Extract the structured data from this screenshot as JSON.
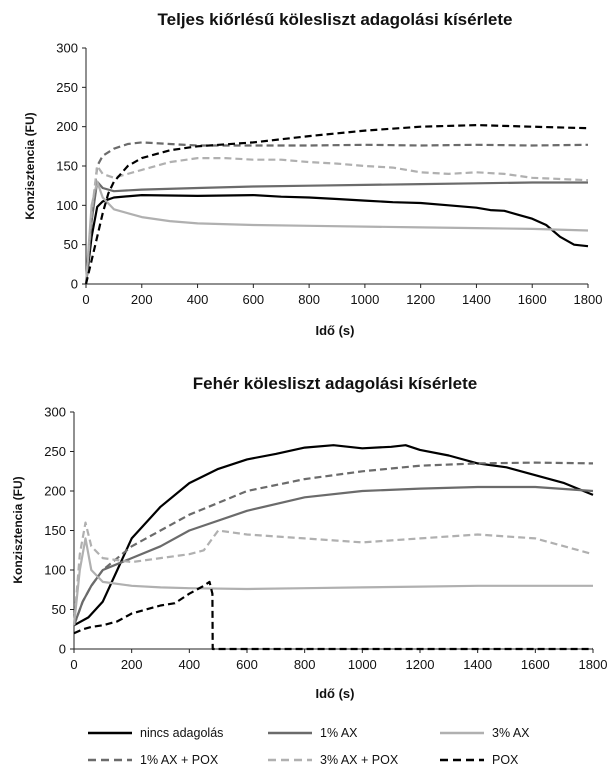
{
  "chart_data": [
    {
      "type": "line",
      "title": "Teljes kiőrlésű kölesliszt adagolási kísérlete",
      "xlabel": "Idő (s)",
      "ylabel": "Konzisztencia (FU)",
      "xlim": [
        0,
        1800
      ],
      "ylim": [
        0,
        300
      ],
      "xticks": [
        0,
        200,
        400,
        600,
        800,
        1000,
        1200,
        1400,
        1600,
        1800
      ],
      "yticks": [
        0,
        50,
        100,
        150,
        200,
        250,
        300
      ],
      "grid": false,
      "series": [
        {
          "name": "nincs adagolás",
          "color": "#000000",
          "dash": "solid",
          "width": 2.2,
          "x": [
            0,
            20,
            40,
            60,
            100,
            200,
            400,
            600,
            700,
            800,
            900,
            1000,
            1100,
            1200,
            1300,
            1400,
            1450,
            1500,
            1550,
            1600,
            1650,
            1700,
            1750,
            1800
          ],
          "y": [
            0,
            60,
            98,
            105,
            110,
            113,
            112,
            113,
            111,
            110,
            108,
            106,
            104,
            103,
            100,
            97,
            94,
            93,
            88,
            83,
            75,
            60,
            50,
            48
          ]
        },
        {
          "name": "1% AX",
          "color": "#6b6b6b",
          "dash": "solid",
          "width": 2.2,
          "x": [
            0,
            20,
            40,
            60,
            100,
            200,
            400,
            600,
            800,
            1000,
            1200,
            1400,
            1600,
            1800
          ],
          "y": [
            0,
            80,
            130,
            122,
            118,
            120,
            122,
            124,
            125,
            126,
            127,
            128,
            129,
            129
          ]
        },
        {
          "name": "3% AX",
          "color": "#b0b0b0",
          "dash": "solid",
          "width": 2.2,
          "x": [
            0,
            20,
            40,
            60,
            100,
            200,
            300,
            400,
            600,
            800,
            1000,
            1200,
            1400,
            1600,
            1800
          ],
          "y": [
            0,
            100,
            130,
            110,
            95,
            85,
            80,
            77,
            75,
            74,
            73,
            72,
            71,
            70,
            68
          ]
        },
        {
          "name": "1% AX + POX",
          "color": "#6b6b6b",
          "dash": "dash",
          "width": 2.2,
          "x": [
            0,
            20,
            40,
            60,
            100,
            150,
            200,
            300,
            400,
            600,
            800,
            1000,
            1200,
            1400,
            1600,
            1800
          ],
          "y": [
            0,
            80,
            150,
            163,
            172,
            178,
            180,
            178,
            176,
            176,
            176,
            177,
            176,
            177,
            176,
            177
          ]
        },
        {
          "name": "3% AX + POX",
          "color": "#b0b0b0",
          "dash": "dash",
          "width": 2.2,
          "x": [
            0,
            20,
            40,
            60,
            100,
            200,
            300,
            400,
            500,
            600,
            700,
            800,
            900,
            1000,
            1100,
            1200,
            1300,
            1400,
            1500,
            1600,
            1800
          ],
          "y": [
            0,
            90,
            150,
            140,
            135,
            145,
            155,
            160,
            160,
            158,
            158,
            155,
            153,
            150,
            148,
            142,
            140,
            142,
            140,
            135,
            132
          ]
        },
        {
          "name": "POX",
          "color": "#000000",
          "dash": "dash",
          "width": 2.2,
          "x": [
            0,
            20,
            40,
            60,
            80,
            100,
            150,
            200,
            300,
            400,
            600,
            800,
            1000,
            1200,
            1400,
            1600,
            1800
          ],
          "y": [
            0,
            30,
            60,
            90,
            115,
            130,
            150,
            160,
            170,
            175,
            180,
            188,
            195,
            200,
            202,
            200,
            198
          ]
        }
      ]
    },
    {
      "type": "line",
      "title": "Fehér kölesliszt adagolási kísérlete",
      "xlabel": "Idő (s)",
      "ylabel": "Konzisztencia (FU)",
      "xlim": [
        0,
        1800
      ],
      "ylim": [
        0,
        300
      ],
      "xticks": [
        0,
        200,
        400,
        600,
        800,
        1000,
        1200,
        1400,
        1600,
        1800
      ],
      "yticks": [
        0,
        50,
        100,
        150,
        200,
        250,
        300
      ],
      "grid": false,
      "series": [
        {
          "name": "nincs adagolás",
          "color": "#000000",
          "dash": "solid",
          "width": 2.2,
          "x": [
            0,
            50,
            100,
            150,
            200,
            300,
            400,
            500,
            600,
            700,
            800,
            900,
            1000,
            1100,
            1150,
            1200,
            1300,
            1400,
            1500,
            1600,
            1700,
            1800
          ],
          "y": [
            30,
            40,
            60,
            100,
            140,
            180,
            210,
            228,
            240,
            247,
            255,
            258,
            254,
            256,
            258,
            252,
            245,
            235,
            230,
            220,
            210,
            195
          ]
        },
        {
          "name": "1% AX",
          "color": "#6b6b6b",
          "dash": "solid",
          "width": 2.2,
          "x": [
            0,
            30,
            60,
            100,
            200,
            300,
            400,
            600,
            800,
            1000,
            1200,
            1400,
            1600,
            1800
          ],
          "y": [
            30,
            60,
            80,
            100,
            115,
            130,
            150,
            175,
            192,
            200,
            203,
            205,
            205,
            200
          ]
        },
        {
          "name": "3% AX",
          "color": "#b0b0b0",
          "dash": "solid",
          "width": 2.2,
          "x": [
            0,
            20,
            40,
            60,
            100,
            200,
            300,
            400,
            600,
            800,
            1000,
            1200,
            1400,
            1600,
            1800
          ],
          "y": [
            30,
            100,
            140,
            100,
            85,
            80,
            78,
            77,
            76,
            77,
            78,
            79,
            80,
            80,
            80
          ]
        },
        {
          "name": "1% AX + POX",
          "color": "#6b6b6b",
          "dash": "dash",
          "width": 2.2,
          "x": [
            0,
            30,
            60,
            100,
            200,
            300,
            400,
            500,
            600,
            800,
            1000,
            1200,
            1400,
            1600,
            1800
          ],
          "y": [
            30,
            60,
            80,
            100,
            130,
            150,
            170,
            185,
            200,
            215,
            225,
            232,
            235,
            236,
            235
          ]
        },
        {
          "name": "3% AX + POX",
          "color": "#b0b0b0",
          "dash": "dash",
          "width": 2.2,
          "x": [
            0,
            20,
            40,
            60,
            100,
            200,
            300,
            400,
            450,
            500,
            600,
            800,
            1000,
            1200,
            1400,
            1600,
            1800
          ],
          "y": [
            30,
            120,
            160,
            130,
            115,
            110,
            115,
            120,
            125,
            150,
            145,
            140,
            135,
            140,
            145,
            140,
            120
          ]
        },
        {
          "name": "POX",
          "color": "#000000",
          "dash": "dash",
          "width": 2.2,
          "x": [
            0,
            30,
            60,
            100,
            150,
            200,
            250,
            300,
            350,
            400,
            450,
            470,
            480,
            481,
            600,
            800,
            1000,
            1200,
            1400,
            1600,
            1800
          ],
          "y": [
            20,
            25,
            28,
            30,
            35,
            45,
            50,
            55,
            58,
            70,
            80,
            85,
            70,
            0,
            0,
            0,
            0,
            0,
            0,
            0,
            0
          ]
        }
      ]
    }
  ],
  "legend": {
    "placement": "bottom",
    "items": [
      {
        "label": "nincs adagolás",
        "color": "#000000",
        "dash": "solid"
      },
      {
        "label": "1% AX",
        "color": "#6b6b6b",
        "dash": "solid"
      },
      {
        "label": "3% AX",
        "color": "#b0b0b0",
        "dash": "solid"
      },
      {
        "label": "1% AX + POX",
        "color": "#6b6b6b",
        "dash": "dash"
      },
      {
        "label": "3% AX + POX",
        "color": "#b0b0b0",
        "dash": "dash"
      },
      {
        "label": "POX",
        "color": "#000000",
        "dash": "dash"
      }
    ]
  }
}
